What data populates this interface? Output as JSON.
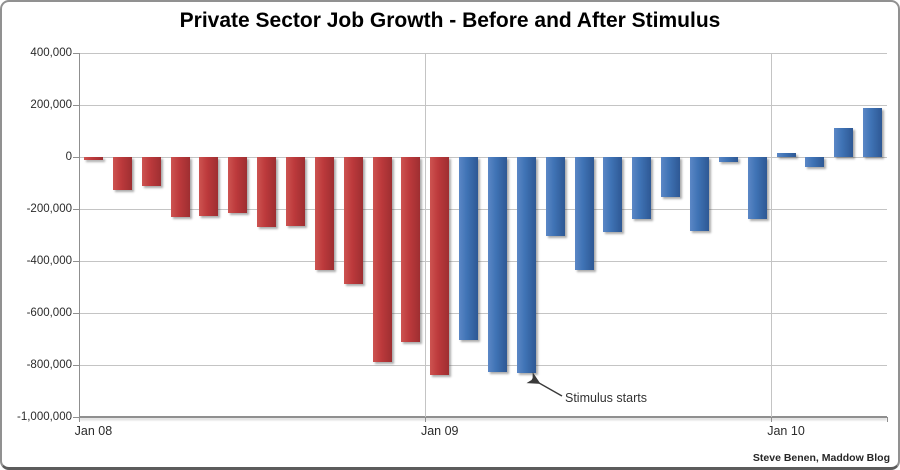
{
  "page": {
    "attribution": "Steve Benen, Maddow Blog"
  },
  "chart_data": {
    "type": "bar",
    "title": "Private Sector Job Growth - Before and After Stimulus",
    "xlabel": "",
    "ylabel": "",
    "ylim": [
      -1000000,
      400000
    ],
    "grid": true,
    "legend": "none",
    "y_ticks": [
      {
        "value": 400000,
        "label": "400,000"
      },
      {
        "value": 200000,
        "label": "200,000"
      },
      {
        "value": 0,
        "label": "0"
      },
      {
        "value": -200000,
        "label": "-200,000"
      },
      {
        "value": -400000,
        "label": "-400,000"
      },
      {
        "value": -600000,
        "label": "-600,000"
      },
      {
        "value": -800000,
        "label": "-800,000"
      },
      {
        "value": -1000000,
        "label": "-1,000,000"
      }
    ],
    "x_ticks": [
      {
        "month_index": 0,
        "label": "Jan 08"
      },
      {
        "month_index": 12,
        "label": "Jan 09"
      },
      {
        "month_index": 24,
        "label": "Jan 10"
      }
    ],
    "colors": {
      "before_stimulus": "#bd3a3c",
      "after_stimulus": "#3f73b5"
    },
    "annotation": {
      "text": "Stimulus starts",
      "target_month": "Apr 2009",
      "target_index": 15
    },
    "bars": [
      {
        "month": "Jan 2008",
        "value": -10000,
        "period": "before_stimulus"
      },
      {
        "month": "Feb 2008",
        "value": -125000,
        "period": "before_stimulus"
      },
      {
        "month": "Mar 2008",
        "value": -110000,
        "period": "before_stimulus"
      },
      {
        "month": "Apr 2008",
        "value": -230000,
        "period": "before_stimulus"
      },
      {
        "month": "May 2008",
        "value": -225000,
        "period": "before_stimulus"
      },
      {
        "month": "Jun 2008",
        "value": -215000,
        "period": "before_stimulus"
      },
      {
        "month": "Jul 2008",
        "value": -270000,
        "period": "before_stimulus"
      },
      {
        "month": "Aug 2008",
        "value": -265000,
        "period": "before_stimulus"
      },
      {
        "month": "Sep 2008",
        "value": -435000,
        "period": "before_stimulus"
      },
      {
        "month": "Oct 2008",
        "value": -490000,
        "period": "before_stimulus"
      },
      {
        "month": "Nov 2008",
        "value": -790000,
        "period": "before_stimulus"
      },
      {
        "month": "Dec 2008",
        "value": -710000,
        "period": "before_stimulus"
      },
      {
        "month": "Jan 2009",
        "value": -840000,
        "period": "before_stimulus"
      },
      {
        "month": "Feb 2009",
        "value": -705000,
        "period": "after_stimulus"
      },
      {
        "month": "Mar 2009",
        "value": -825000,
        "period": "after_stimulus"
      },
      {
        "month": "Apr 2009",
        "value": -830000,
        "period": "after_stimulus"
      },
      {
        "month": "May 2009",
        "value": -305000,
        "period": "after_stimulus"
      },
      {
        "month": "Jun 2009",
        "value": -435000,
        "period": "after_stimulus"
      },
      {
        "month": "Jul 2009",
        "value": -290000,
        "period": "after_stimulus"
      },
      {
        "month": "Aug 2009",
        "value": -240000,
        "period": "after_stimulus"
      },
      {
        "month": "Sep 2009",
        "value": -155000,
        "period": "after_stimulus"
      },
      {
        "month": "Oct 2009",
        "value": -285000,
        "period": "after_stimulus"
      },
      {
        "month": "Nov 2009",
        "value": -20000,
        "period": "after_stimulus"
      },
      {
        "month": "Dec 2009",
        "value": -240000,
        "period": "after_stimulus"
      },
      {
        "month": "Jan 2010",
        "value": 15000,
        "period": "after_stimulus"
      },
      {
        "month": "Feb 2010",
        "value": -40000,
        "period": "after_stimulus"
      },
      {
        "month": "Mar 2010",
        "value": 110000,
        "period": "after_stimulus"
      },
      {
        "month": "Apr 2010",
        "value": 190000,
        "period": "after_stimulus"
      }
    ]
  }
}
